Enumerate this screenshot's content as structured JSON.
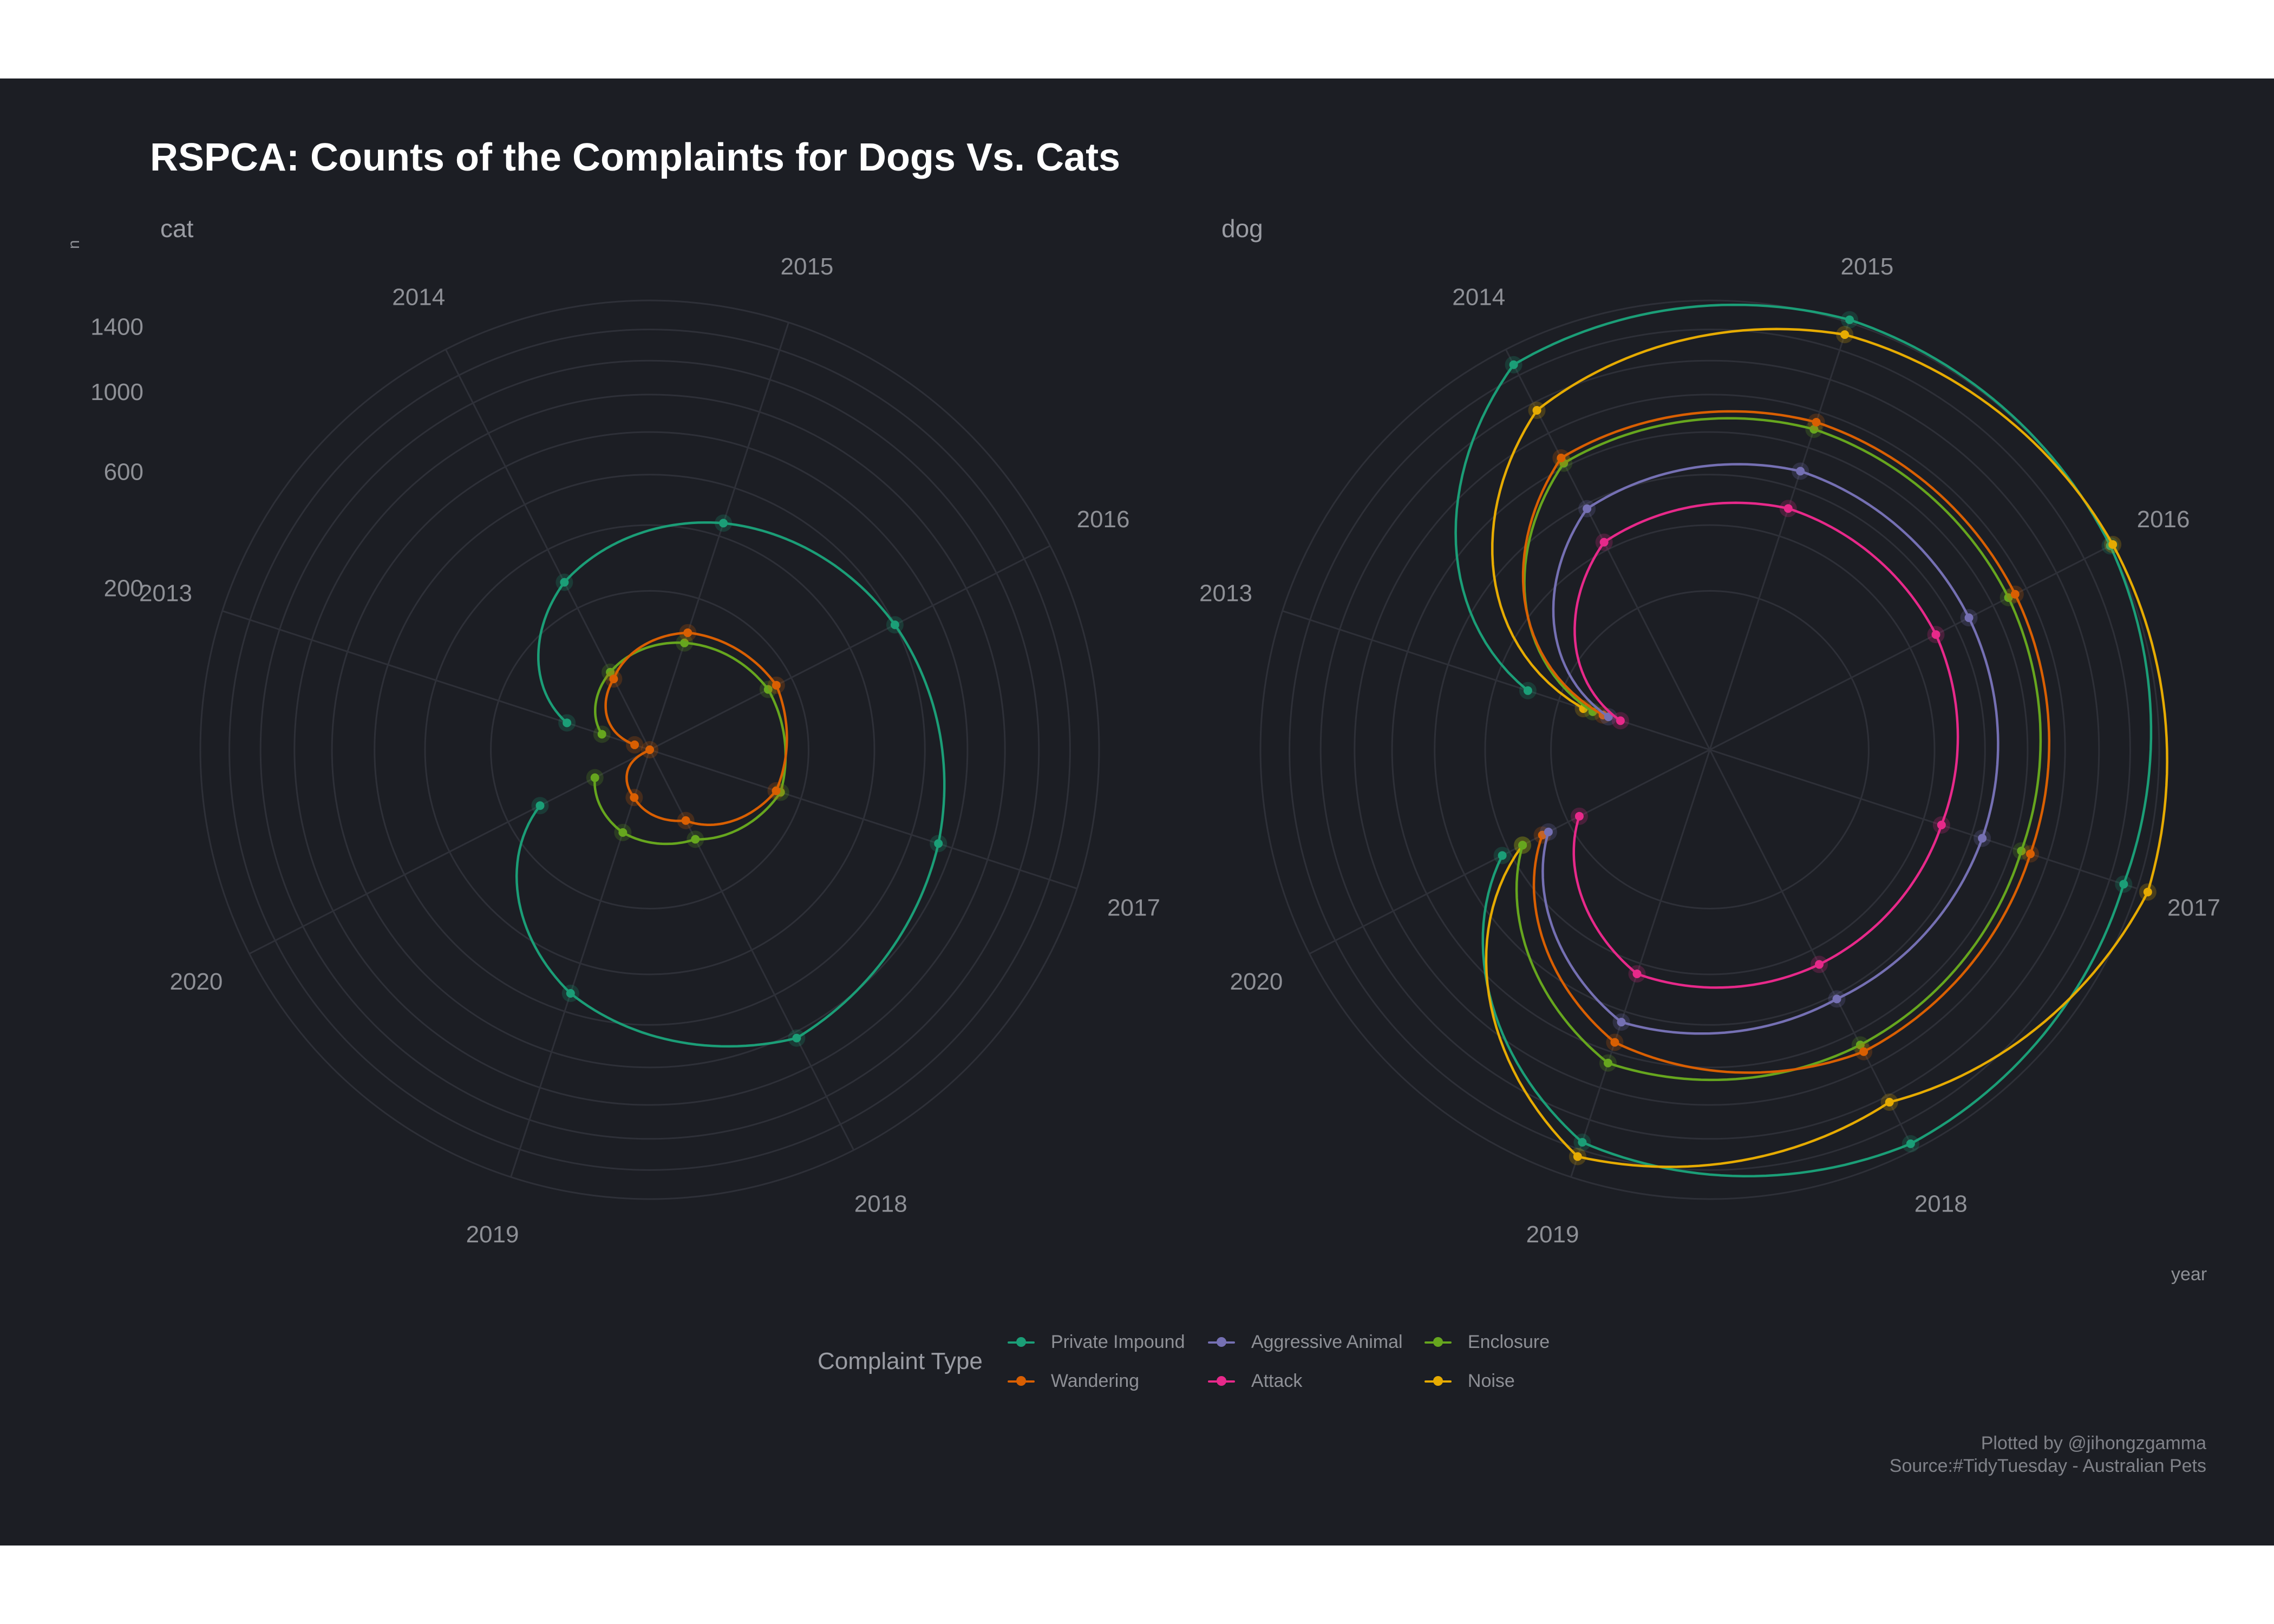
{
  "title": "RSPCA: Counts of the Complaints for Dogs Vs. Cats",
  "y_axis_label": "n",
  "x_axis_label": "year",
  "legend": {
    "title": "Complaint Type",
    "items": [
      {
        "label": "Private Impound",
        "color": "#1b9e77"
      },
      {
        "label": "Aggressive Animal",
        "color": "#7570b3"
      },
      {
        "label": "Enclosure",
        "color": "#66a61e"
      },
      {
        "label": "Wandering",
        "color": "#d95f02"
      },
      {
        "label": "Attack",
        "color": "#e7298a"
      },
      {
        "label": "Noise",
        "color": "#e6ab02"
      }
    ]
  },
  "caption": {
    "line1": "Plotted by @jihongzgamma",
    "line2": "Source:#TidyTuesday - Australian Pets"
  },
  "chart_data": {
    "type": "line",
    "coord": "polar",
    "facets": [
      "cat",
      "dog"
    ],
    "theta_ticks": [
      2013,
      2014,
      2015,
      2016,
      2017,
      2018,
      2019,
      2020
    ],
    "r_ticks": [
      200,
      600,
      1000,
      1400
    ],
    "r_scale": "sqrt",
    "r_max": 1600,
    "series": [
      {
        "facet": "cat",
        "name": "Private Impound",
        "color": "#1b9e77",
        "x": [
          2013,
          2014,
          2015,
          2016,
          2017,
          2018,
          2019,
          2020
        ],
        "values": [
          60,
          280,
          450,
          600,
          730,
          830,
          520,
          120
        ]
      },
      {
        "facet": "cat",
        "name": "Enclosure",
        "color": "#66a61e",
        "x": [
          2013,
          2014,
          2015,
          2016,
          2017,
          2018,
          2019,
          2020
        ],
        "values": [
          20,
          60,
          100,
          140,
          150,
          80,
          60,
          30
        ]
      },
      {
        "facet": "cat",
        "name": "Wandering",
        "color": "#d95f02",
        "x": [
          2013,
          2014,
          2015,
          2016,
          2017,
          2018,
          2019,
          2020
        ],
        "values": [
          2,
          50,
          120,
          160,
          140,
          50,
          20,
          0
        ]
      },
      {
        "facet": "dog",
        "name": "Private Impound",
        "color": "#1b9e77",
        "x": [
          2013,
          2014,
          2015,
          2016,
          2017,
          2018,
          2019,
          2020
        ],
        "values": [
          290,
          1480,
          1620,
          1600,
          1500,
          1550,
          1350,
          430
        ]
      },
      {
        "facet": "dog",
        "name": "Noise",
        "color": "#e6ab02",
        "x": [
          2013,
          2014,
          2015,
          2016,
          2017,
          2018,
          2019,
          2020
        ],
        "values": [
          140,
          1150,
          1510,
          1620,
          1680,
          1240,
          1450,
          350
        ]
      },
      {
        "facet": "dog",
        "name": "Enclosure",
        "color": "#66a61e",
        "x": [
          2013,
          2014,
          2015,
          2016,
          2017,
          2018,
          2019,
          2020
        ],
        "values": [
          120,
          820,
          900,
          890,
          850,
          870,
          860,
          350
        ]
      },
      {
        "facet": "dog",
        "name": "Wandering",
        "color": "#d95f02",
        "x": [
          2013,
          2014,
          2015,
          2016,
          2017,
          2018,
          2019,
          2020
        ],
        "values": [
          100,
          850,
          940,
          930,
          900,
          910,
          750,
          280
        ]
      },
      {
        "facet": "dog",
        "name": "Aggressive Animal",
        "color": "#7570b3",
        "x": [
          2013,
          2014,
          2015,
          2016,
          2017,
          2018,
          2019,
          2020
        ],
        "values": [
          90,
          580,
          680,
          670,
          650,
          620,
          650,
          260
        ]
      },
      {
        "facet": "dog",
        "name": "Attack",
        "color": "#e7298a",
        "x": [
          2013,
          2014,
          2015,
          2016,
          2017,
          2018,
          2019,
          2020
        ],
        "values": [
          70,
          430,
          510,
          510,
          470,
          460,
          440,
          170
        ]
      }
    ]
  }
}
